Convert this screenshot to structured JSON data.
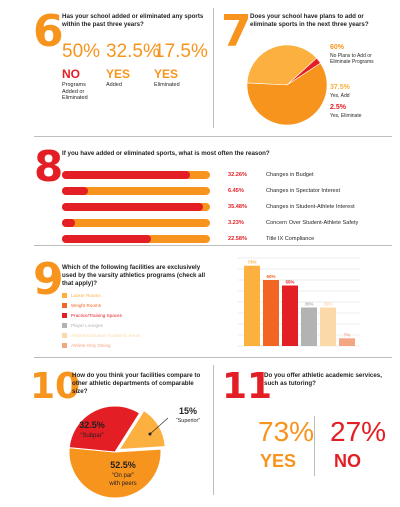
{
  "colors": {
    "orange": "#f7941d",
    "orange_light": "#fbb040",
    "red": "#e31e24",
    "gray": "#b3b3b3",
    "peach": "#fcd9a8",
    "salmon": "#f4a582",
    "darkorange": "#f26522"
  },
  "section6": {
    "num": "6",
    "question": "Has your school added or eliminated any sports within the past three years?",
    "items": [
      {
        "pct": "50%",
        "word": "NO",
        "label": "Programs Added or Eliminated"
      },
      {
        "pct": "32.5%",
        "word": "YES",
        "label": "Added"
      },
      {
        "pct": "17.5%",
        "word": "YES",
        "label": "Eliminated"
      }
    ]
  },
  "section7": {
    "num": "7",
    "question": "Does your school have plans to add or eliminate sports in the next three years?",
    "legend": [
      {
        "pct": "60%",
        "label": "No Plans to Add or Eliminate Programs"
      },
      {
        "pct": "37.5%",
        "label": "Yes, Add"
      },
      {
        "pct": "2.5%",
        "label": "Yes, Eliminate"
      }
    ]
  },
  "section8": {
    "num": "8",
    "question": "If you have added or eliminated sports, what is most often the reason?"
  },
  "section9": {
    "num": "9",
    "question": "Which of the following facilities are exclusively used by the varsity athletics programs (check all that apply)?"
  },
  "section10": {
    "num": "10",
    "question": "How do you think your facilities compare to other athletic departments of comparable size?",
    "labels": {
      "subpar_pct": "32.5%",
      "subpar": "“Subpar”",
      "superior_pct": "15%",
      "superior": "“Superior”",
      "onpar_pct": "52.5%",
      "onpar1": "“On par”",
      "onpar2": "with peers"
    }
  },
  "section11": {
    "num": "11",
    "question": "Do you offer athletic academic services, such as tutoring?",
    "yes_pct": "73%",
    "yes": "YES",
    "no_pct": "27%",
    "no": "NO"
  },
  "chart_data": [
    {
      "type": "pie",
      "title": "Does your school have plans to add or eliminate sports in the next three years?",
      "categories": [
        "No Plans to Add or Eliminate Programs",
        "Yes, Add",
        "Yes, Eliminate"
      ],
      "values": [
        60,
        37.5,
        2.5
      ],
      "colors": [
        "#f7941d",
        "#fbb040",
        "#e31e24"
      ]
    },
    {
      "type": "bar",
      "orientation": "horizontal",
      "title": "If you have added or eliminated sports, what is most often the reason?",
      "categories": [
        "Changes in Budget",
        "Changes in Spectator Interest",
        "Changes in Student-Athlete Interest",
        "Concern Over Student-Athlete Safety",
        "Title IX Compliance"
      ],
      "values": [
        32.26,
        6.45,
        35.48,
        3.23,
        22.58
      ],
      "value_labels": [
        "32.26%",
        "6.45%",
        "35.48%",
        "3.23%",
        "22.58%"
      ]
    },
    {
      "type": "bar",
      "title": "Which of the following facilities are exclusively used by the varsity athletics programs (check all that apply)?",
      "categories": [
        "Locker Rooms",
        "Weight Rooms",
        "Practice/Training Spaces",
        "Player Lounges",
        "Athlete/Exclusive Academic Areas",
        "Athlete-Only Dining"
      ],
      "values": [
        73,
        60,
        55,
        35,
        35,
        7
      ],
      "value_labels": [
        "73%",
        "60%",
        "55%",
        "35%",
        "35%",
        "7%"
      ],
      "colors": [
        "#fbb040",
        "#f26522",
        "#e31e24",
        "#b3b3b3",
        "#fcd9a8",
        "#f4a582"
      ],
      "ylim": [
        0,
        80
      ],
      "grid": true
    },
    {
      "type": "pie",
      "title": "How do you think your facilities compare to other athletic departments of comparable size?",
      "categories": [
        "“Subpar”",
        "“Superior”",
        "“On par” with peers"
      ],
      "values": [
        32.5,
        15,
        52.5
      ],
      "colors": [
        "#e31e24",
        "#fbb040",
        "#f7941d"
      ]
    }
  ]
}
